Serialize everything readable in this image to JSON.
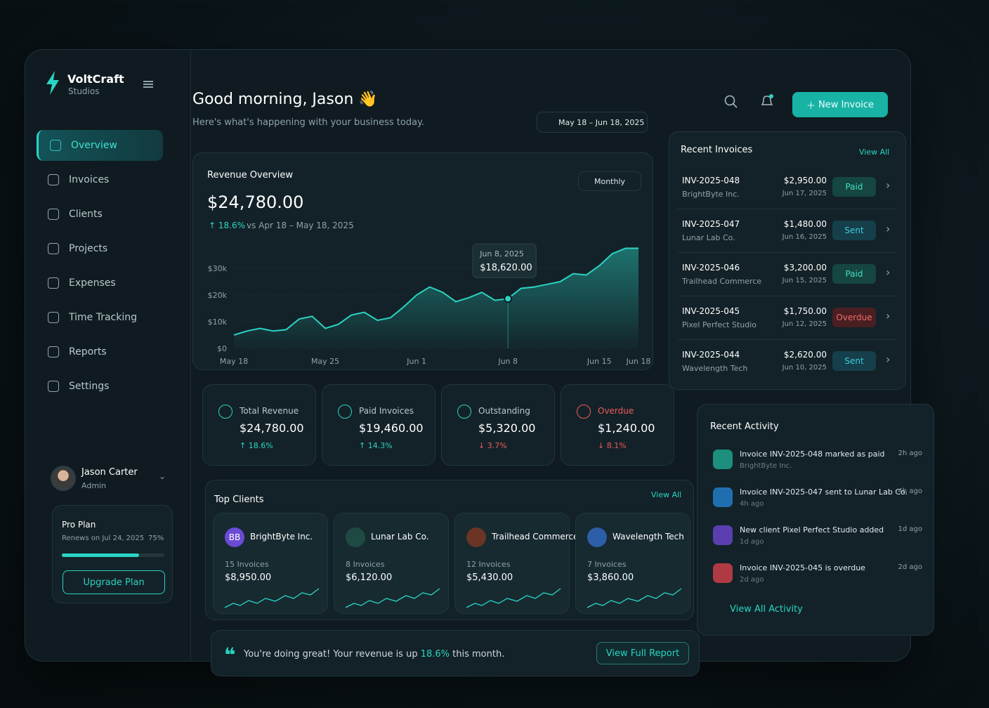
{
  "brand": {
    "name": "VoltCraft",
    "sub": "Studios"
  },
  "nav": [
    "Overview",
    "Invoices",
    "Clients",
    "Projects",
    "Expenses",
    "Time Tracking",
    "Reports",
    "Settings"
  ],
  "user": {
    "name": "Jason Carter",
    "role": "Admin"
  },
  "plan": {
    "name": "Pro Plan",
    "renews": "Renews on Jul 24, 2025",
    "progress": {
      "value": 75,
      "label": "75%"
    },
    "button": "Upgrade Plan"
  },
  "header": {
    "greeting": "Good morning, Jason 👋",
    "subtitle": "Here's what's happening with your business today.",
    "date_range": "May 18 – Jun 18, 2025",
    "new_invoice": "New Invoice"
  },
  "chart_data": {
    "type": "area",
    "title": "Revenue Overview",
    "period": "Monthly",
    "total": "$24,780.00",
    "change": "18.6%",
    "comparison": "vs Apr 18 – May 18, 2025",
    "tooltip": {
      "date": "Jun 8, 2025",
      "value": "$18,620.00"
    },
    "categories": [
      "May 18",
      null,
      null,
      null,
      null,
      null,
      null,
      "May 25",
      null,
      null,
      null,
      null,
      null,
      null,
      "Jun 1",
      null,
      null,
      null,
      null,
      null,
      null,
      "Jun 8",
      null,
      null,
      null,
      null,
      null,
      null,
      "Jun 15",
      null,
      null,
      "Jun 18"
    ],
    "values": [
      5000,
      6500,
      7500,
      6500,
      7000,
      11000,
      12000,
      7500,
      9000,
      12500,
      13500,
      10500,
      11500,
      15500,
      20000,
      23000,
      21000,
      17500,
      19000,
      21000,
      18000,
      18620,
      22500,
      23000,
      24000,
      25000,
      28000,
      27500,
      31000,
      35500,
      37500,
      37500
    ],
    "color": "#2ad4c4",
    "ylim": [
      0,
      40000
    ],
    "yticks": [
      {
        "value": 0,
        "label": "$0"
      },
      {
        "value": 10000,
        "label": "$10k"
      },
      {
        "value": 20000,
        "label": "$20k"
      },
      {
        "value": 30000,
        "label": "$30k"
      }
    ],
    "grid": true
  },
  "kpis": [
    {
      "label": "Total Revenue",
      "value": "$24,780.00",
      "change": "18.6%",
      "trend": "up"
    },
    {
      "label": "Paid Invoices",
      "value": "$19,460.00",
      "change": "14.3%",
      "trend": "up"
    },
    {
      "label": "Outstanding",
      "value": "$5,320.00",
      "change": "3.7%",
      "trend": "down"
    },
    {
      "label": "Overdue",
      "value": "$1,240.00",
      "change": "8.1%",
      "trend": "down"
    }
  ],
  "top_clients": {
    "title": "Top Clients",
    "view_all": "View All",
    "items": [
      {
        "initials": "BB",
        "name": "BrightByte Inc.",
        "invoices": "15 Invoices",
        "amount": "$8,950.00"
      },
      {
        "name": "Lunar Lab Co.",
        "invoices": "8 Invoices",
        "amount": "$6,120.00"
      },
      {
        "name": "Trailhead Commerce",
        "invoices": "12 Invoices",
        "amount": "$5,430.00"
      },
      {
        "name": "Wavelength Tech",
        "invoices": "7 Invoices",
        "amount": "$3,860.00"
      }
    ]
  },
  "recent_invoices": {
    "title": "Recent Invoices",
    "view_all": "View All",
    "items": [
      {
        "id": "INV-2025-048",
        "client": "BrightByte Inc.",
        "amount": "$2,950.00",
        "date": "Jun 17, 2025",
        "status": "Paid"
      },
      {
        "id": "INV-2025-047",
        "client": "Lunar Lab Co.",
        "amount": "$1,480.00",
        "date": "Jun 16, 2025",
        "status": "Sent"
      },
      {
        "id": "INV-2025-046",
        "client": "Trailhead Commerce",
        "amount": "$3,200.00",
        "date": "Jun 15, 2025",
        "status": "Paid"
      },
      {
        "id": "INV-2025-045",
        "client": "Pixel Perfect Studio",
        "amount": "$1,750.00",
        "date": "Jun 12, 2025",
        "status": "Overdue"
      },
      {
        "id": "INV-2025-044",
        "client": "Wavelength Tech",
        "amount": "$2,620.00",
        "date": "Jun 10, 2025",
        "status": "Sent"
      }
    ]
  },
  "recent_activity": {
    "title": "Recent Activity",
    "view_all": "View All Activity",
    "items": [
      {
        "text": "Invoice INV-2025-048 marked as paid",
        "sub": "BrightByte Inc.",
        "time": "2h ago"
      },
      {
        "text": "Invoice INV-2025-047 sent to Lunar Lab Co.",
        "sub": "4h ago",
        "time": "4h ago"
      },
      {
        "text": "New client Pixel Perfect Studio added",
        "sub": "1d ago",
        "time": "1d ago"
      },
      {
        "text": "Invoice INV-2025-045 is overdue",
        "sub": "2d ago",
        "time": "2d ago"
      }
    ]
  },
  "banner": {
    "before": "You're doing great! Your revenue is up ",
    "highlight": "18.6%",
    "after": " this month.",
    "button": "View Full Report"
  }
}
